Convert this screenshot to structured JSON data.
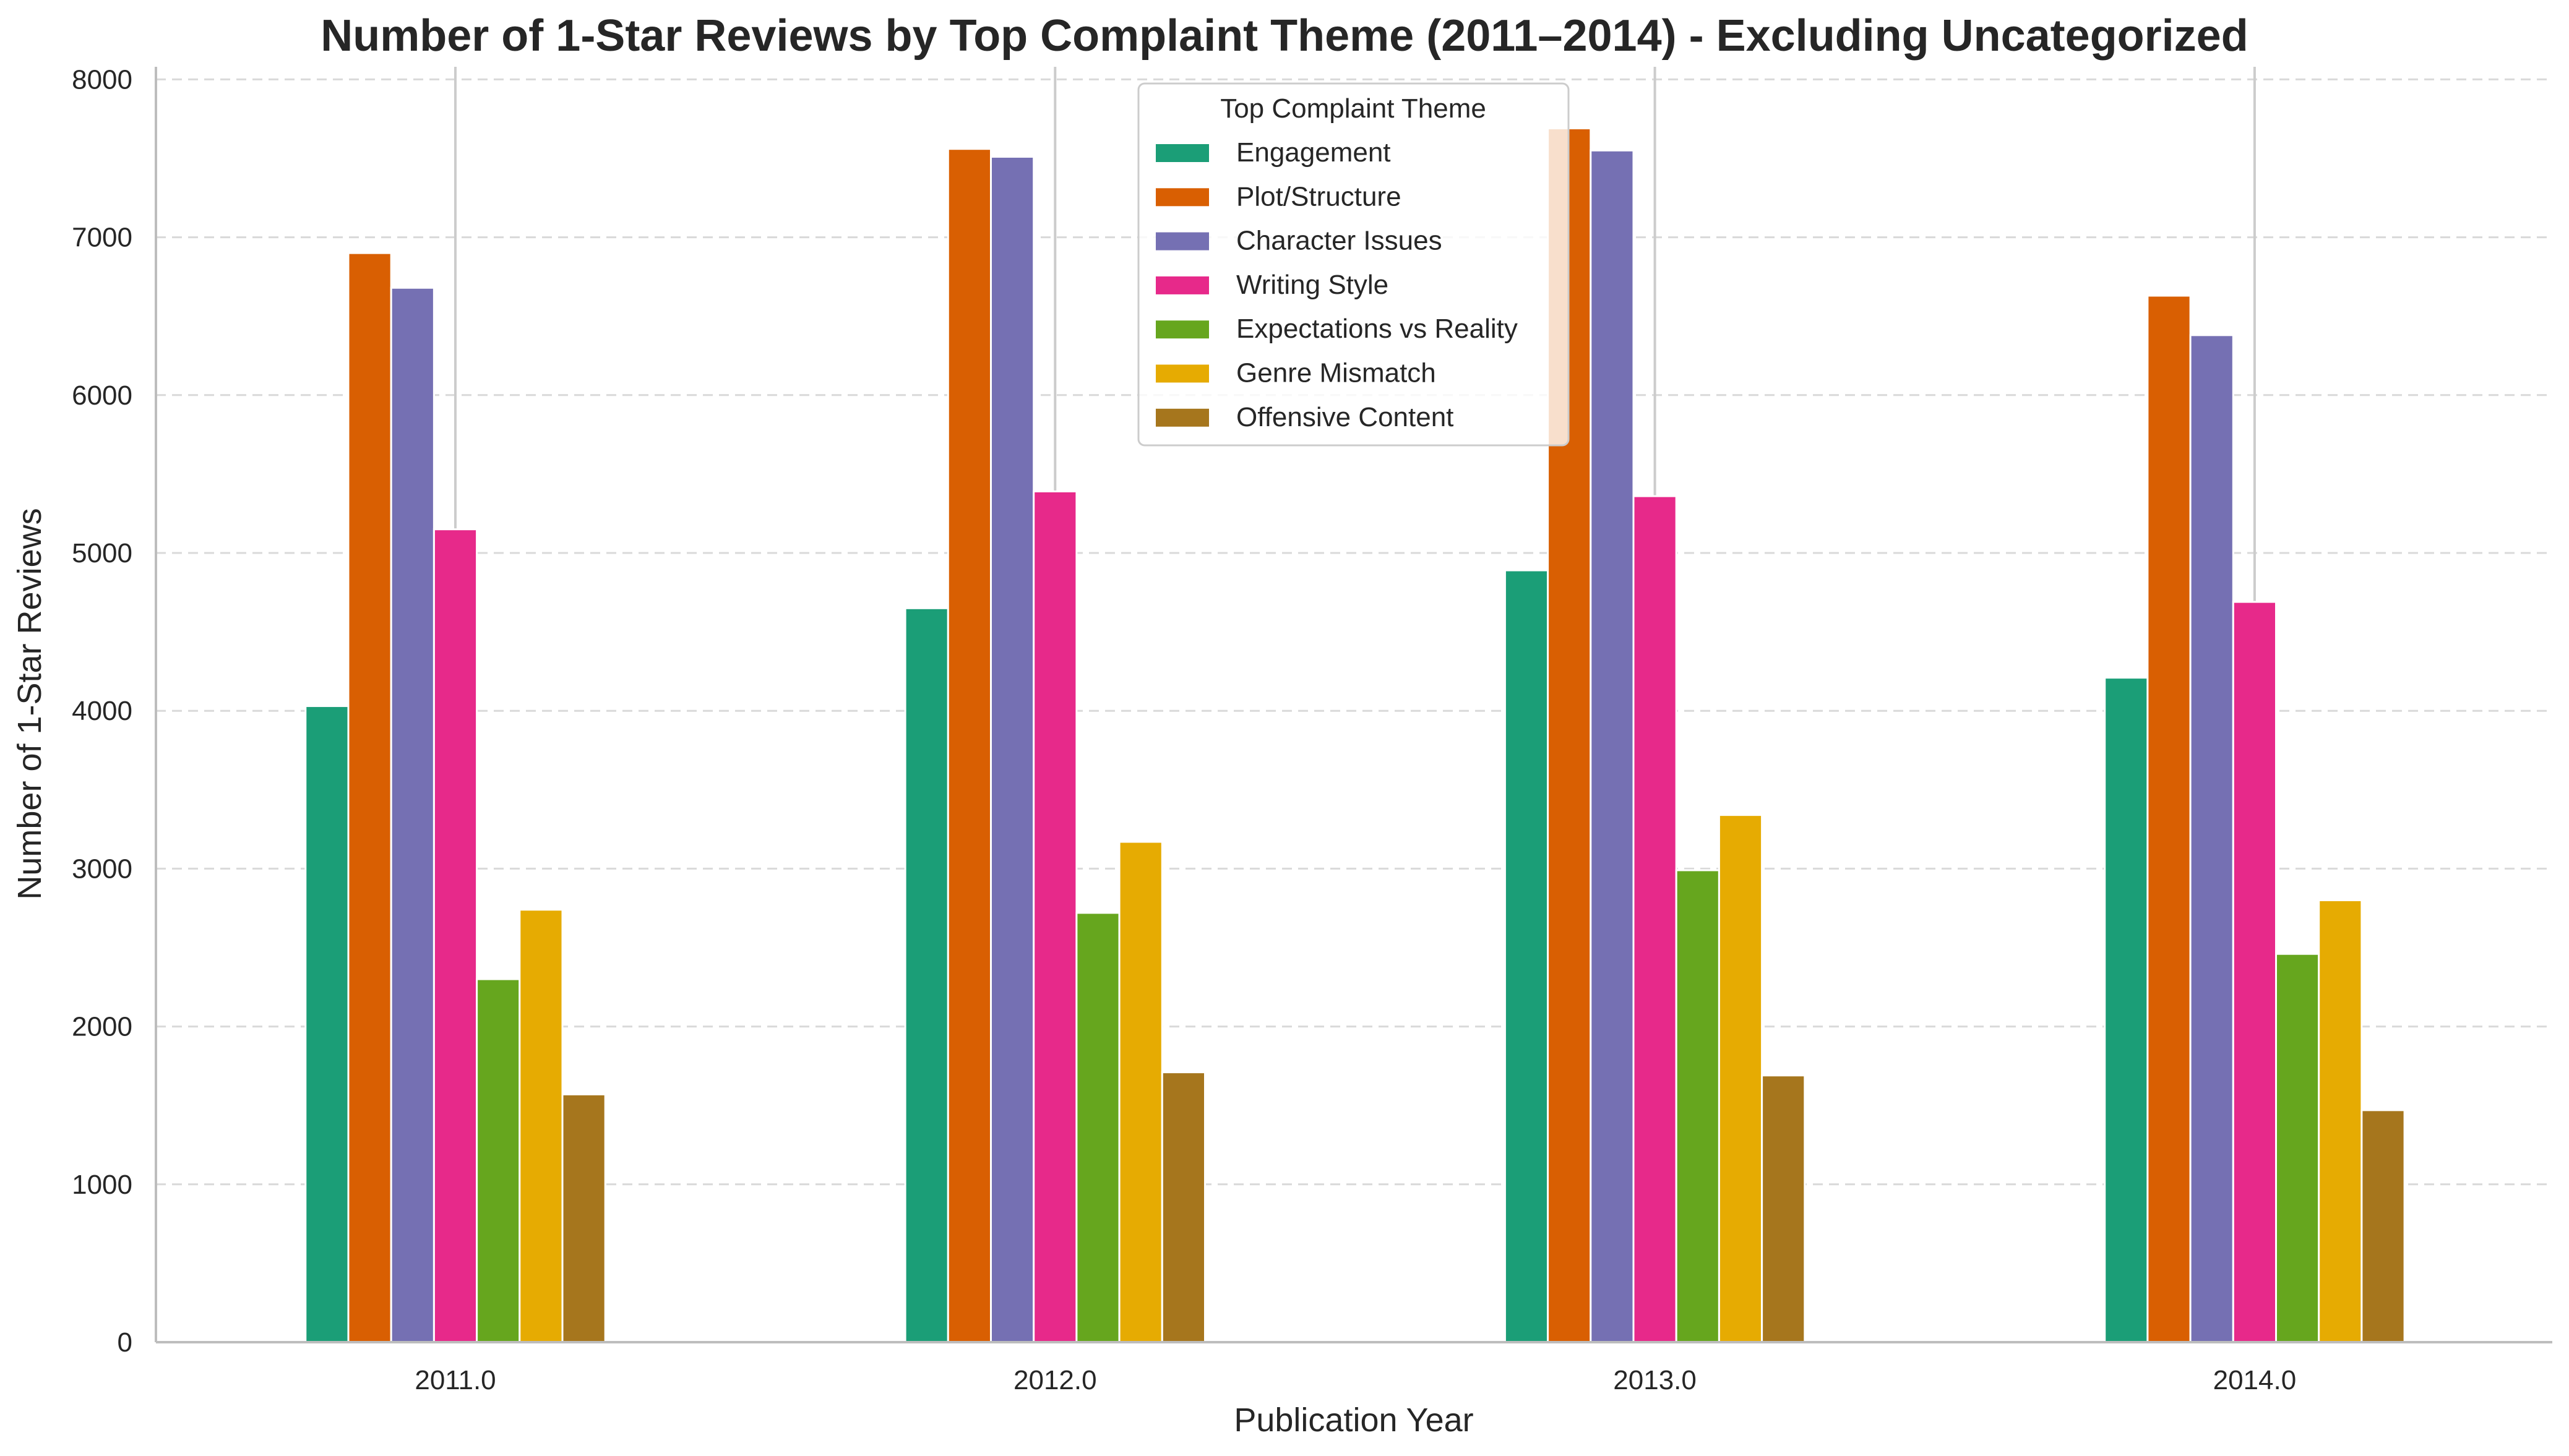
{
  "chart_data": {
    "type": "bar",
    "title": "Number of 1-Star Reviews by Top Complaint Theme (2011–2014) - Excluding Uncategorized",
    "xlabel": "Publication Year",
    "ylabel": "Number of 1-Star Reviews",
    "categories": [
      "2011.0",
      "2012.0",
      "2013.0",
      "2014.0"
    ],
    "ylim": [
      0,
      8080
    ],
    "yticks": [
      "0",
      "1000",
      "2000",
      "3000",
      "4000",
      "5000",
      "6000",
      "7000",
      "8000"
    ],
    "grid": "horizontal dashed",
    "legend": {
      "title": "Top Complaint Theme",
      "placement": "top-center"
    },
    "series": [
      {
        "name": "Engagement",
        "color": "#1b9e77",
        "values": [
          4030,
          4650,
          4890,
          4210
        ]
      },
      {
        "name": "Plot/Structure",
        "color": "#d95f02",
        "values": [
          6900,
          7560,
          7690,
          6630
        ]
      },
      {
        "name": "Character Issues",
        "color": "#7570b3",
        "values": [
          6680,
          7510,
          7550,
          6380
        ]
      },
      {
        "name": "Writing Style",
        "color": "#e7298a",
        "values": [
          5150,
          5390,
          5360,
          4690
        ]
      },
      {
        "name": "Expectations vs Reality",
        "color": "#66a61e",
        "values": [
          2300,
          2720,
          2990,
          2460
        ]
      },
      {
        "name": "Genre Mismatch",
        "color": "#e6ab02",
        "values": [
          2740,
          3170,
          3340,
          2800
        ]
      },
      {
        "name": "Offensive Content",
        "color": "#a6761d",
        "values": [
          1570,
          1710,
          1690,
          1470
        ]
      }
    ]
  }
}
